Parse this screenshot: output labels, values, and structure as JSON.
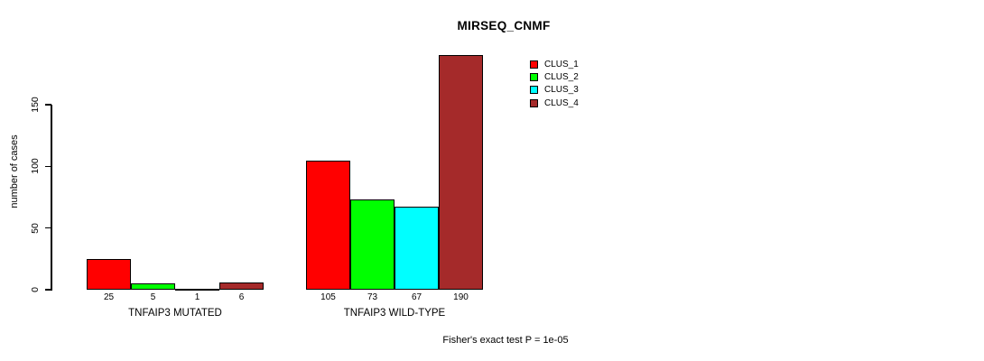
{
  "title": "MIRSEQ_CNMF",
  "ylabel": "number of cases",
  "footnote": "Fisher's exact test P = 1e-05",
  "legend": [
    {
      "label": "CLUS_1",
      "color": "#FF0000"
    },
    {
      "label": "CLUS_2",
      "color": "#00FF00"
    },
    {
      "label": "CLUS_3",
      "color": "#00FFFF"
    },
    {
      "label": "CLUS_4",
      "color": "#A52A2A"
    }
  ],
  "chart_data": {
    "type": "bar",
    "title": "MIRSEQ_CNMF",
    "xlabel": "",
    "ylabel": "number of cases",
    "categories": [
      "TNFAIP3 MUTATED",
      "TNFAIP3 WILD-TYPE"
    ],
    "series": [
      {
        "name": "CLUS_1",
        "color": "#FF0000",
        "values": [
          25,
          105
        ]
      },
      {
        "name": "CLUS_2",
        "color": "#00FF00",
        "values": [
          5,
          73
        ]
      },
      {
        "name": "CLUS_3",
        "color": "#00FFFF",
        "values": [
          1,
          67
        ]
      },
      {
        "name": "CLUS_4",
        "color": "#A52A2A",
        "values": [
          6,
          190
        ]
      }
    ],
    "bar_value_labels": [
      [
        25,
        5,
        1,
        6
      ],
      [
        105,
        73,
        67,
        190
      ]
    ],
    "yticks": [
      0,
      50,
      100,
      150
    ],
    "ylim": [
      0,
      190
    ],
    "grid": false,
    "legend_position": "top-right",
    "annotation": "Fisher's exact test P = 1e-05"
  }
}
